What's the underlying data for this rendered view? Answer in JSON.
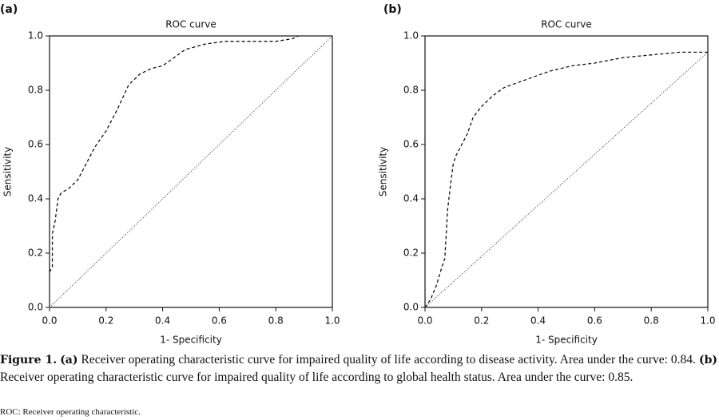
{
  "chart_data": [
    {
      "type": "line",
      "panel_label": "(a)",
      "title": "ROC curve",
      "xlabel": "1- Specificity",
      "ylabel": "Sensitivity",
      "xlim": [
        0,
        1
      ],
      "ylim": [
        0,
        1
      ],
      "xticks": [
        {
          "value": 0,
          "label": "0.0"
        },
        0.2,
        0.4,
        0.6,
        0.8,
        {
          "value": 1,
          "label": "1.0"
        }
      ],
      "yticks": [
        {
          "value": 0,
          "label": "0.0"
        },
        0.2,
        0.4,
        0.6,
        0.8,
        {
          "value": 1,
          "label": "1.0"
        }
      ],
      "series": [
        {
          "color": "#111111",
          "style": "dashed",
          "x": [
            0,
            0.01,
            0.01,
            0.02,
            0.03,
            0.04,
            0.07,
            0.1,
            0.13,
            0.16,
            0.2,
            0.24,
            0.28,
            0.32,
            0.36,
            0.4,
            0.44,
            0.48,
            0.55,
            0.62,
            0.7,
            0.8,
            0.86,
            0.88
          ],
          "values": [
            0.13,
            0.15,
            0.27,
            0.32,
            0.4,
            0.42,
            0.44,
            0.47,
            0.53,
            0.59,
            0.65,
            0.73,
            0.82,
            0.86,
            0.88,
            0.89,
            0.92,
            0.95,
            0.97,
            0.98,
            0.98,
            0.98,
            0.99,
            1.0
          ]
        },
        {
          "color": "#555555",
          "style": "dotted",
          "x": [
            0,
            1
          ],
          "values": [
            0,
            1
          ]
        }
      ]
    },
    {
      "type": "line",
      "panel_label": "(b)",
      "title": "ROC curve",
      "xlabel": "1- Specificity",
      "ylabel": "Sensitivity",
      "xlim": [
        0,
        1
      ],
      "ylim": [
        0,
        1
      ],
      "xticks": [
        {
          "value": 0,
          "label": "0.0"
        },
        0.2,
        0.4,
        0.6,
        0.8,
        {
          "value": 1,
          "label": "1.0"
        }
      ],
      "yticks": [
        {
          "value": 0,
          "label": "0.0"
        },
        0.2,
        0.4,
        0.6,
        0.8,
        {
          "value": 1,
          "label": "1.0"
        }
      ],
      "series": [
        {
          "color": "#111111",
          "style": "dashed",
          "x": [
            0,
            0.02,
            0.04,
            0.06,
            0.07,
            0.08,
            0.09,
            0.1,
            0.11,
            0.13,
            0.15,
            0.17,
            0.2,
            0.24,
            0.28,
            0.36,
            0.44,
            0.52,
            0.6,
            0.7,
            0.8,
            0.9,
            0.95,
            1
          ],
          "values": [
            0,
            0.03,
            0.08,
            0.15,
            0.18,
            0.36,
            0.45,
            0.53,
            0.56,
            0.6,
            0.64,
            0.7,
            0.74,
            0.78,
            0.81,
            0.84,
            0.87,
            0.89,
            0.9,
            0.92,
            0.93,
            0.94,
            0.94,
            0.94
          ]
        },
        {
          "color": "#555555",
          "style": "dotted",
          "x": [
            0,
            1
          ],
          "values": [
            0,
            0.94
          ]
        }
      ]
    }
  ],
  "caption": {
    "figure": "Figure 1.",
    "a_label": "(a)",
    "a_text": "Receiver operating characteristic curve for impaired quality of life according to disease activity. Area under the curve: 0.84.",
    "b_label": "(b)",
    "b_text": "Receiver operating characteristic curve for impaired quality of life according to global health status. Area under the curve: 0.85.",
    "note": "ROC: Receiver operating characteristic."
  }
}
